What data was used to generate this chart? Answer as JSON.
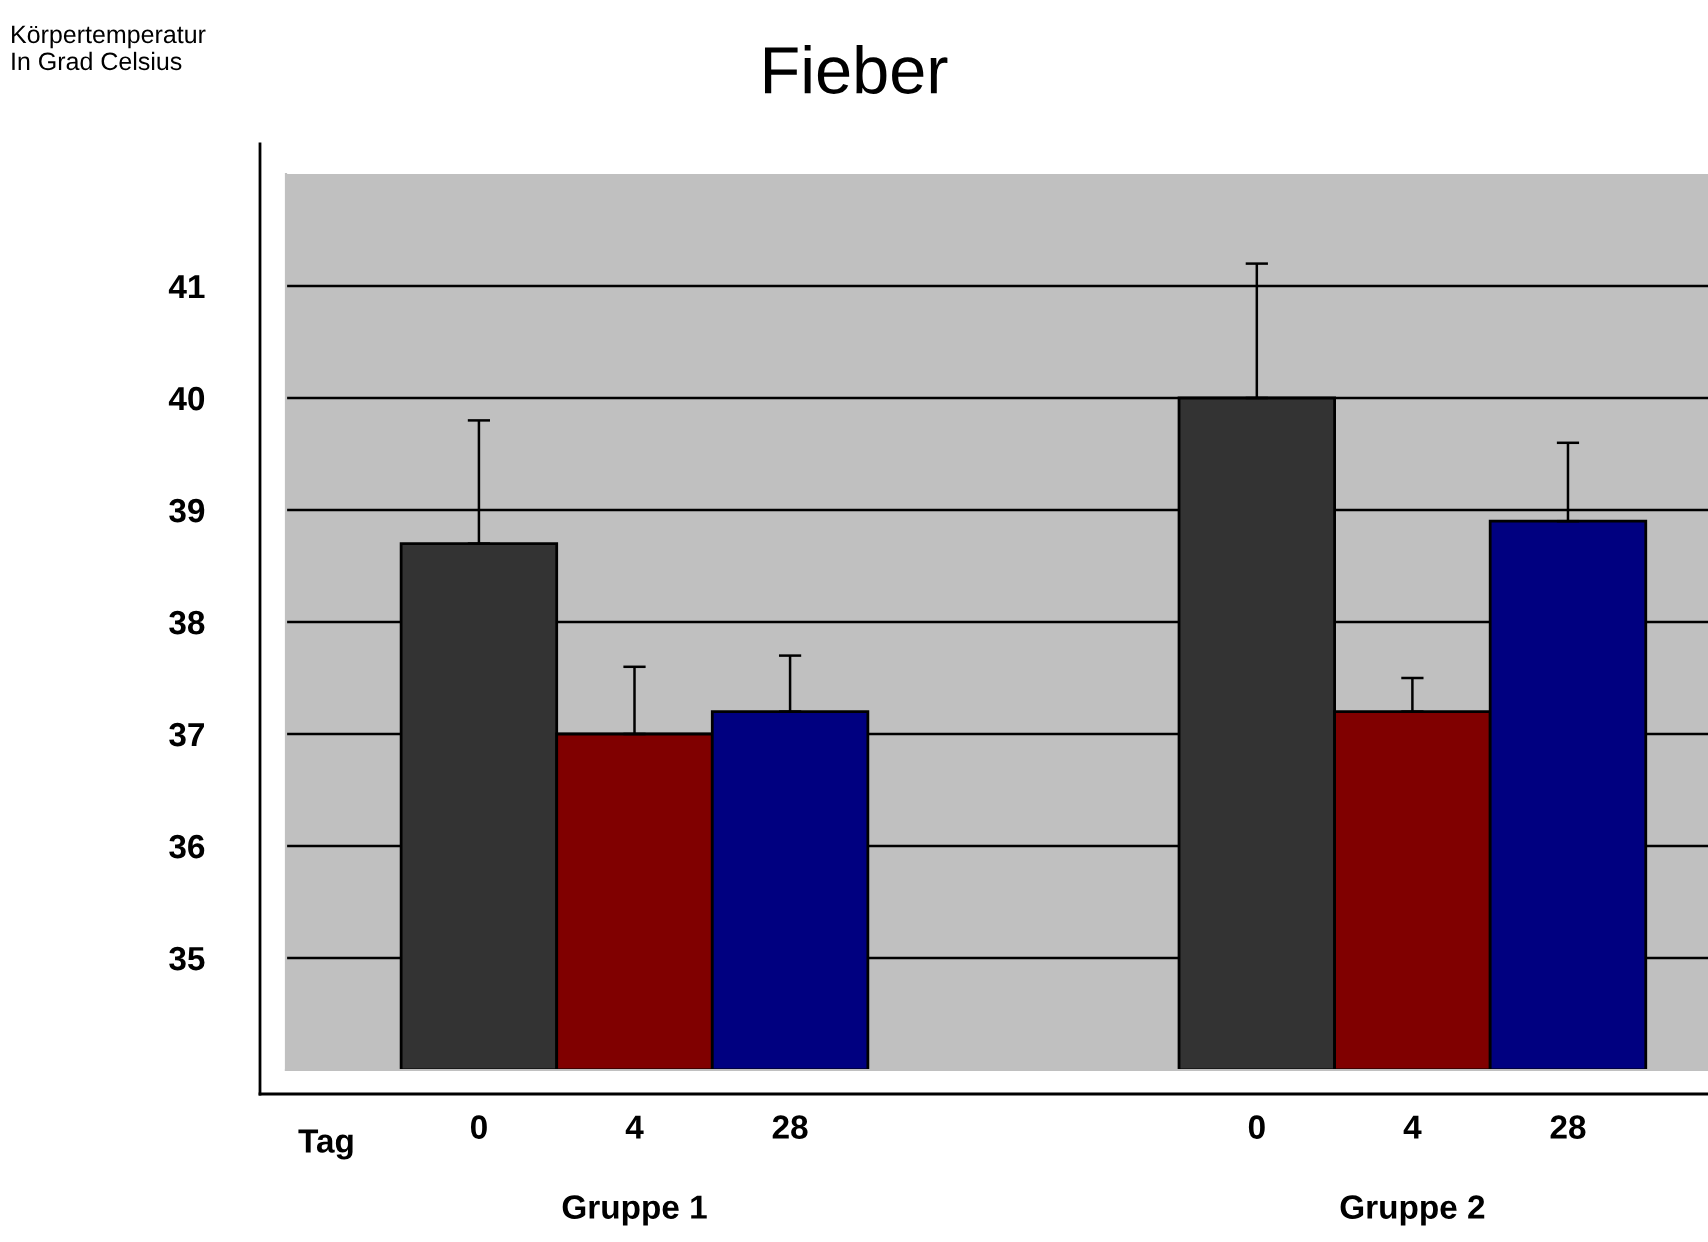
{
  "chart_data": {
    "type": "bar",
    "title": "Fieber",
    "ylabel": "Körpertemperatur\nIn Grad Celsius",
    "categories": [
      "0",
      "4",
      "28",
      null,
      null,
      "0",
      "4",
      "28"
    ],
    "values": [
      38.7,
      37.0,
      37.2,
      null,
      null,
      40.0,
      37.2,
      38.9
    ],
    "errors": [
      [
        38.7,
        39.8
      ],
      [
        37.0,
        37.6
      ],
      [
        37.2,
        37.7
      ],
      null,
      null,
      [
        40.0,
        41.2
      ],
      [
        37.2,
        37.5
      ],
      [
        38.9,
        39.6
      ]
    ],
    "colors": [
      "#333333",
      "#800000",
      "#000080",
      "#ffffff",
      "#ffffff",
      "#333333",
      "#800000",
      "#000080"
    ],
    "annotations": [
      "Tag",
      "Gruppe 1",
      "Gruppe 2"
    ],
    "ylim": [
      34,
      42
    ],
    "yticks": [
      35,
      36,
      37,
      38,
      39,
      40,
      41
    ],
    "grid": "y"
  }
}
